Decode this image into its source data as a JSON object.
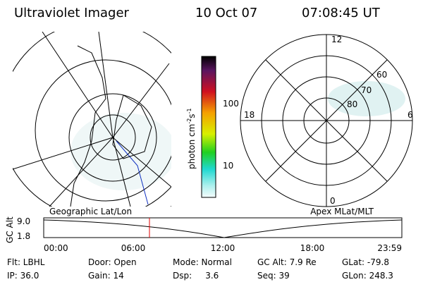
{
  "header": {
    "title": "Ultraviolet Imager",
    "date": "10 Oct 07",
    "time": "07:08:45 UT"
  },
  "colorbar": {
    "unit": {
      "base": "photon cm",
      "exp1": "-2",
      "mid": "s",
      "exp2": "-1"
    },
    "ticks": [
      "100",
      "10"
    ]
  },
  "polar": {
    "labels": {
      "top": "12",
      "bottom": "0",
      "left": "18",
      "right": "6"
    },
    "rings": [
      "60",
      "70",
      "80"
    ]
  },
  "panels": {
    "left_label": "Geographic Lat/Lon",
    "right_label": "Apex MLat/MLT"
  },
  "altitude": {
    "axis_label": "GC Alt",
    "ymax": "9.0",
    "ymin": "1.8",
    "xticks": [
      "00:00",
      "06:00",
      "12:00",
      "18:00",
      "23:59"
    ]
  },
  "info": {
    "rows": [
      [
        "Flt: LBHL",
        "Door: Open",
        "Mode: Normal",
        "GC Alt: 7.9 Re",
        "GLat: -79.8"
      ],
      [
        "IP: 36.0",
        "Gain: 14",
        "Dsp:     3.6",
        "Seq: 39",
        "GLon: 248.3"
      ]
    ]
  }
}
